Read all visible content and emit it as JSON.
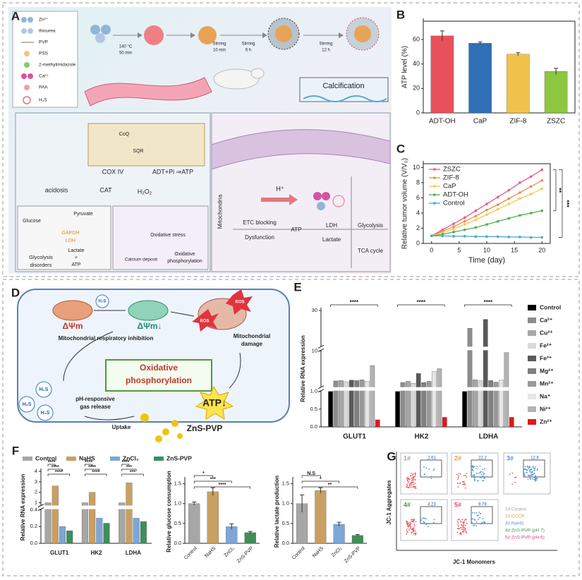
{
  "panel_a": {
    "label": "A",
    "legend": [
      "Zn²⁺",
      "thiourea",
      "PVP",
      "PSS",
      "2-methylimidazole",
      "Ca²⁺",
      "PAA",
      "H₂S"
    ],
    "steps": [
      "140 °C",
      "50 min",
      "Stirring",
      "10 min",
      "Stirring",
      "6 h",
      "Stirring",
      "12 h"
    ],
    "texts": [
      "Calcification",
      "CoQ",
      "SQR",
      "COX IV",
      "ADT+Pi ⇒ATP",
      "acidosis",
      "CAT",
      "H₂O₂",
      "Glucose",
      "Pyruvate",
      "GAPDH",
      "LDH",
      "Lactate",
      "+",
      "ATP",
      "Glycolysis",
      "disorders",
      "Oxidative stress",
      "Calcium deposit",
      "Oxidative",
      "phosphorylation",
      "Mitochondria",
      "H⁺",
      "ETC blocking",
      "LDH",
      "Glycolysis",
      "ATP",
      "Dysfunction",
      "Lactate",
      "TCA cycle"
    ]
  },
  "panel_d": {
    "label": "D",
    "texts": [
      "ΔΨm",
      "H₂S",
      "ΔΨm↓",
      "Mitochondrial respiratory inhibition",
      "ROS",
      "ROS",
      "Mitochondrial",
      "damage",
      "Oxidative",
      "phosphorylation",
      "ATP↓",
      "pH-responsive",
      "gas release",
      "H₂S",
      "H₂S",
      "H₂S",
      "Uptake",
      "ZnS-PVP"
    ]
  },
  "panel_g": {
    "label": "G",
    "plots": [
      {
        "name": "1#",
        "value": 2.61
      },
      {
        "name": "2#",
        "value": 22.2
      },
      {
        "name": "3#",
        "value": 12.6
      },
      {
        "name": "4#",
        "value": 4.23
      },
      {
        "name": "5#",
        "value": 9.78
      }
    ],
    "legend": [
      "1#:Control",
      "2#:CCCP",
      "3#:NaHS",
      "4#:ZnS-PVP (pH 7)",
      "5#:ZnS-PVP (pH 6)"
    ],
    "ylabel": "JC-1 Aggregates",
    "xlabel": "JC-1 Monomers"
  },
  "chart_data": [
    {
      "panel": "B",
      "type": "bar",
      "categories": [
        "ADT-OH",
        "CaP",
        "ZIF-8",
        "ZSZC"
      ],
      "values": [
        63,
        57,
        48,
        34
      ],
      "errors": [
        4,
        1,
        1.2,
        2.5
      ],
      "colors": [
        "#e8505b",
        "#2f6fb5",
        "#f0c24b",
        "#8dc63f"
      ],
      "ylabel": "ATP level (%)",
      "ylim": [
        0,
        75
      ],
      "yticks": [
        0,
        20,
        40,
        60
      ]
    },
    {
      "panel": "C",
      "type": "line",
      "x": [
        0,
        2,
        4,
        6,
        8,
        10,
        12,
        14,
        16,
        18,
        20
      ],
      "series": [
        {
          "name": "ZSZC",
          "color": "#e8578f",
          "values": [
            1,
            1.8,
            2.6,
            3.4,
            4.3,
            5.2,
            6.1,
            7.0,
            8.0,
            8.8,
            9.7
          ]
        },
        {
          "name": "ZIF-8",
          "color": "#f08a4b",
          "values": [
            1,
            1.6,
            2.2,
            2.9,
            3.6,
            4.4,
            5.1,
            5.9,
            6.7,
            7.5,
            8.3
          ]
        },
        {
          "name": "CaP",
          "color": "#f2c94c",
          "values": [
            1,
            1.4,
            1.9,
            2.5,
            3.1,
            3.8,
            4.5,
            5.2,
            5.9,
            6.5,
            7.2
          ]
        },
        {
          "name": "ADT-OH",
          "color": "#4caf50",
          "values": [
            1,
            1.2,
            1.5,
            1.8,
            2.1,
            2.5,
            2.9,
            3.3,
            3.7,
            4.0,
            4.3
          ]
        },
        {
          "name": "Control",
          "color": "#4aa3df",
          "values": [
            1,
            1,
            0.95,
            0.95,
            0.9,
            0.9,
            0.9,
            0.85,
            0.85,
            0.8,
            0.8
          ]
        }
      ],
      "xlabel": "Time (day)",
      "ylabel": "Relative tumor volume (V/V₀)",
      "xlim": [
        -1.5,
        21.5
      ],
      "xticks": [
        0,
        5,
        10,
        15,
        20
      ],
      "ylim": [
        0,
        10.5
      ],
      "yticks": [
        0,
        2,
        4,
        6,
        8,
        10
      ],
      "legend_position": "upper left",
      "annotations": [
        "**",
        "***"
      ]
    },
    {
      "panel": "E",
      "type": "bar",
      "ylabel": "Relative RNA expression",
      "categories": [
        "GLUT1",
        "HK2",
        "LDHA"
      ],
      "series": [
        {
          "name": "Control",
          "color": "#000000",
          "values": [
            1,
            1,
            1
          ]
        },
        {
          "name": "Ca²⁺",
          "color": "#8c8c8c",
          "values": [
            2.4,
            2.0,
            20
          ]
        },
        {
          "name": "Cu²⁺",
          "color": "#a6a6a6",
          "values": [
            2.5,
            2.3,
            2.7
          ]
        },
        {
          "name": "Fe²⁺",
          "color": "#d9d9d9",
          "values": [
            2.2,
            1.8,
            2.4
          ]
        },
        {
          "name": "Fe³⁺",
          "color": "#595959",
          "values": [
            2.6,
            4.3,
            25
          ]
        },
        {
          "name": "Mg²⁺",
          "color": "#7f7f7f",
          "values": [
            2.5,
            2.0,
            2.5
          ]
        },
        {
          "name": "Mn²⁺",
          "color": "#999999",
          "values": [
            2.7,
            2.3,
            2.1
          ]
        },
        {
          "name": "Na⁺",
          "color": "#e6e6e6",
          "values": [
            2.3,
            4.8,
            2.6
          ]
        },
        {
          "name": "Ni²⁺",
          "color": "#b3b3b3",
          "values": [
            6.3,
            5.5,
            9.6
          ]
        },
        {
          "name": "Zn²⁺",
          "color": "#e8141b",
          "values": [
            0.2,
            0.27,
            0.27
          ]
        }
      ],
      "ylim": [
        0,
        30
      ],
      "y_segments": [
        [
          0,
          1
        ],
        [
          1,
          10
        ],
        [
          10,
          30
        ]
      ],
      "yticks": [
        {
          "value": 0,
          "label": "0.0"
        },
        0.5,
        {
          "value": 1,
          "label": "1.0"
        },
        10,
        30
      ],
      "annotations": [
        "****",
        "****",
        "****"
      ]
    },
    {
      "panel": "F",
      "type": "bar",
      "ylabel": "Relative RNA expression",
      "categories": [
        "GLUT1",
        "HK2",
        "LDHA"
      ],
      "series": [
        {
          "name": "Control",
          "color": "#a6a6a6",
          "values": [
            1,
            1,
            1
          ]
        },
        {
          "name": "NaHS",
          "color": "#c9a063",
          "values": [
            2.6,
            2.0,
            2.9
          ]
        },
        {
          "name": "ZnCl₂",
          "color": "#7ea6d8",
          "values": [
            0.2,
            0.3,
            0.3
          ]
        },
        {
          "name": "ZnS-PVP",
          "color": "#3f8f5a",
          "values": [
            0.15,
            0.24,
            0.26
          ]
        }
      ],
      "ylim": [
        0,
        4
      ],
      "y_segments": [
        [
          0,
          0.4
        ],
        [
          0.8,
          4
        ]
      ],
      "yticks": [
        {
          "value": 0,
          "label": "0.0"
        },
        0.2,
        0.4,
        1,
        2,
        3,
        4
      ],
      "annotations": [
        [
          "****",
          "****",
          "****"
        ],
        [
          "****",
          "****",
          "****"
        ],
        [
          "****",
          "***",
          "***"
        ]
      ]
    },
    {
      "type": "bar",
      "ylabel": "Relative glucose consumption",
      "categories": [
        "Control",
        "NaHS",
        "ZnCl₂",
        "ZnS-PVP"
      ],
      "values": [
        1.0,
        1.3,
        0.42,
        0.27
      ],
      "errors": [
        0.04,
        0.1,
        0.07,
        0.03
      ],
      "colors": [
        "#a6a6a6",
        "#c9a063",
        "#7ea6d8",
        "#3f8f5a"
      ],
      "ylim": [
        0,
        1.6
      ],
      "yticks": [
        {
          "value": 0,
          "label": "0.0"
        },
        0.5,
        {
          "value": 1,
          "label": "1.0"
        },
        1.5
      ],
      "annotations": [
        "*",
        "***",
        "****"
      ]
    },
    {
      "type": "bar",
      "ylabel": "Relative lactate production",
      "categories": [
        "Control",
        "NaHS",
        "ZnCl₂",
        "ZnS-PVP"
      ],
      "values": [
        1.0,
        1.33,
        0.48,
        0.2
      ],
      "errors": [
        0.22,
        0.07,
        0.05,
        0.02
      ],
      "colors": [
        "#a6a6a6",
        "#c9a063",
        "#7ea6d8",
        "#3f8f5a"
      ],
      "ylim": [
        0,
        1.6
      ],
      "yticks": [
        {
          "value": 0,
          "label": "0.0"
        },
        0.5,
        {
          "value": 1,
          "label": "1.0"
        },
        1.5
      ],
      "annotations": [
        "N.S",
        "*",
        "**"
      ]
    }
  ]
}
